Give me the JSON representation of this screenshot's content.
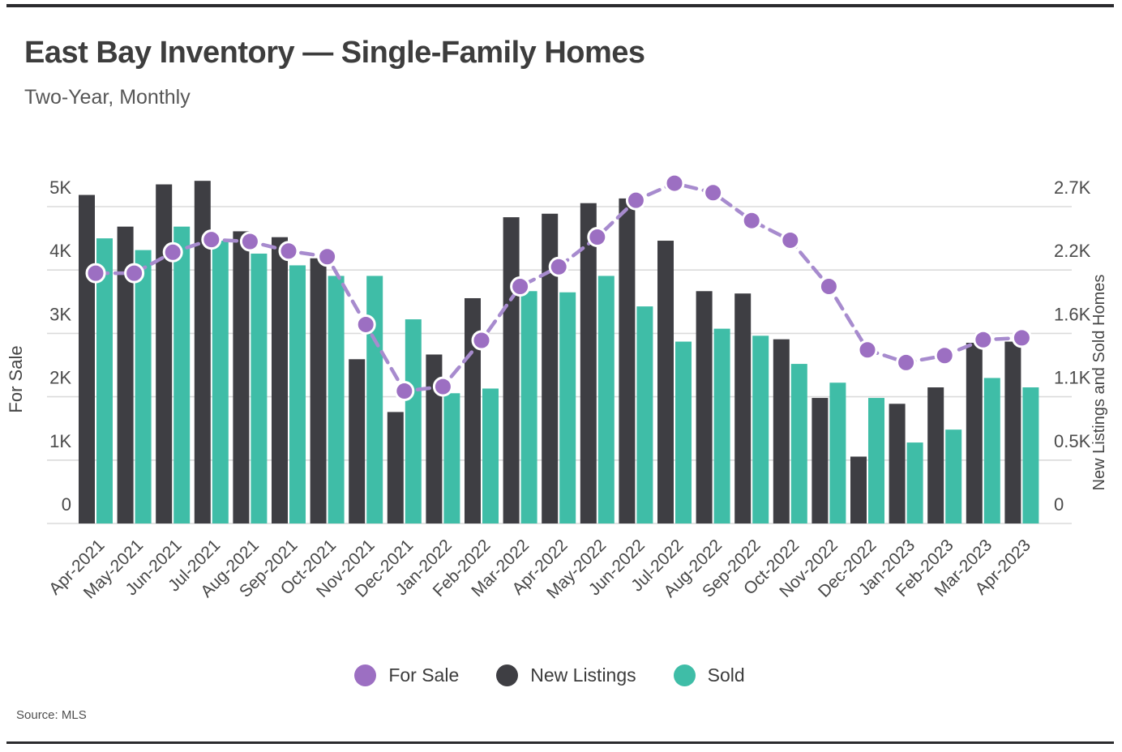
{
  "header": {
    "title": "East Bay Inventory — Single-Family Homes",
    "subtitle": "Two-Year, Monthly"
  },
  "source": {
    "label": "Source: MLS"
  },
  "chart_data": {
    "type": "bar+line",
    "title": "East Bay Inventory — Single-Family Homes",
    "subtitle": "Two-Year, Monthly",
    "units": "thousands of homes (K)",
    "grid": true,
    "legend_position": "bottom",
    "categories": [
      "Apr-2021",
      "May-2021",
      "Jun-2021",
      "Jul-2021",
      "Aug-2021",
      "Sep-2021",
      "Oct-2021",
      "Nov-2021",
      "Dec-2021",
      "Jan-2022",
      "Feb-2022",
      "Mar-2022",
      "Apr-2022",
      "May-2022",
      "Jun-2022",
      "Jul-2022",
      "Aug-2022",
      "Sep-2022",
      "Oct-2022",
      "Nov-2022",
      "Dec-2022",
      "Jan-2023",
      "Feb-2023",
      "Mar-2023",
      "Apr-2023"
    ],
    "left_axis": {
      "title": "For Sale",
      "tick_labels": [
        "0",
        "1K",
        "2K",
        "3K",
        "4K",
        "5K"
      ],
      "tick_values_k": [
        0,
        1,
        2,
        3,
        4,
        5
      ],
      "range_k": [
        0,
        5.55
      ]
    },
    "right_axis": {
      "title": "New Listings and Sold Homes",
      "tick_labels": [
        "0",
        "0.5K",
        "1.1K",
        "1.6K",
        "2.2K",
        "2.7K"
      ],
      "tick_values_k": [
        0,
        0.54,
        1.08,
        1.62,
        2.16,
        2.7
      ],
      "range_k": [
        0,
        3.0
      ]
    },
    "series": [
      {
        "name": "For Sale",
        "render": "line",
        "axis": "left",
        "color": "#9c6fc2",
        "line_color": "#a78bce",
        "line_style": "dashed",
        "values_k": [
          3.95,
          3.95,
          4.28,
          4.48,
          4.45,
          4.3,
          4.21,
          3.14,
          2.09,
          2.16,
          2.89,
          3.74,
          4.05,
          4.52,
          5.1,
          5.37,
          5.22,
          4.78,
          4.47,
          3.74,
          2.74,
          2.54,
          2.65,
          2.9,
          2.93
        ]
      },
      {
        "name": "New Listings",
        "render": "bar",
        "axis": "right",
        "color": "#3e3e43",
        "values_k": [
          2.8,
          2.53,
          2.89,
          2.92,
          2.49,
          2.44,
          2.26,
          1.4,
          0.95,
          1.44,
          1.92,
          2.61,
          2.64,
          2.73,
          2.77,
          2.41,
          1.98,
          1.96,
          1.57,
          1.07,
          0.57,
          1.02,
          1.16,
          1.54,
          1.55
        ]
      },
      {
        "name": "Sold",
        "render": "bar",
        "axis": "right",
        "color": "#3fbda7",
        "values_k": [
          2.43,
          2.33,
          2.53,
          2.41,
          2.3,
          2.2,
          2.11,
          2.11,
          1.74,
          1.11,
          1.15,
          1.98,
          1.97,
          2.11,
          1.85,
          1.55,
          1.66,
          1.6,
          1.36,
          1.2,
          1.07,
          0.69,
          0.8,
          1.24,
          1.16
        ]
      }
    ],
    "colors": {
      "grid_line": "#dbdbdb",
      "tick_text": "#4b4b4b",
      "axis_title_text": "#454545"
    }
  }
}
